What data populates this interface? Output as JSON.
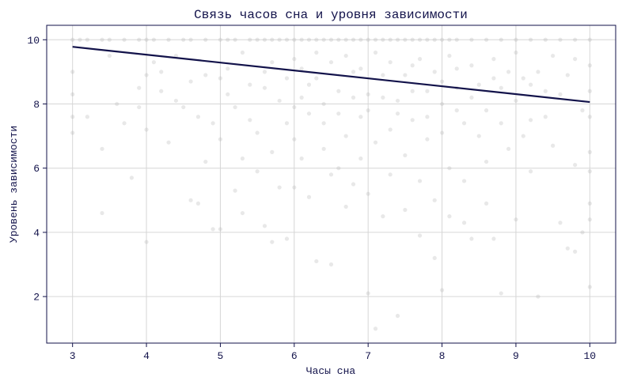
{
  "chart_data": {
    "type": "scatter",
    "title": "Связь часов сна и уровня зависимости",
    "xlabel": "Часы сна",
    "ylabel": "Уровень зависимости",
    "xlim": [
      2.65,
      10.35
    ],
    "ylim": [
      0.55,
      10.45
    ],
    "x_ticks": [
      3,
      4,
      5,
      6,
      7,
      8,
      9,
      10
    ],
    "y_ticks": [
      2,
      4,
      6,
      8,
      10
    ],
    "x_tick_labels": [
      "3",
      "4",
      "5",
      "6",
      "7",
      "8",
      "9",
      "10"
    ],
    "y_tick_labels": [
      "2",
      "4",
      "6",
      "8",
      "10"
    ],
    "grid": true,
    "colors": {
      "points": "#b4b4b4",
      "trend": "#12124a",
      "frame": "#12124a",
      "grid": "#d6d6d6",
      "text": "#12124a"
    },
    "series": [
      {
        "kind": "scatter",
        "points": [
          [
            3.0,
            10.0
          ],
          [
            3.1,
            10.0
          ],
          [
            3.2,
            10.0
          ],
          [
            3.4,
            10.0
          ],
          [
            3.5,
            10.0
          ],
          [
            3.7,
            10.0
          ],
          [
            3.9,
            10.0
          ],
          [
            4.0,
            10.0
          ],
          [
            4.1,
            10.0
          ],
          [
            4.3,
            10.0
          ],
          [
            4.5,
            10.0
          ],
          [
            4.6,
            10.0
          ],
          [
            4.8,
            10.0
          ],
          [
            5.0,
            10.0
          ],
          [
            5.1,
            10.0
          ],
          [
            5.2,
            10.0
          ],
          [
            5.4,
            10.0
          ],
          [
            5.5,
            10.0
          ],
          [
            5.6,
            10.0
          ],
          [
            5.7,
            10.0
          ],
          [
            5.8,
            10.0
          ],
          [
            5.9,
            10.0
          ],
          [
            6.0,
            10.0
          ],
          [
            6.1,
            10.0
          ],
          [
            6.2,
            10.0
          ],
          [
            6.3,
            10.0
          ],
          [
            6.4,
            10.0
          ],
          [
            6.5,
            10.0
          ],
          [
            6.6,
            10.0
          ],
          [
            6.7,
            10.0
          ],
          [
            6.8,
            10.0
          ],
          [
            6.9,
            10.0
          ],
          [
            7.0,
            10.0
          ],
          [
            7.1,
            10.0
          ],
          [
            7.2,
            10.0
          ],
          [
            7.3,
            10.0
          ],
          [
            7.4,
            10.0
          ],
          [
            7.5,
            10.0
          ],
          [
            7.6,
            10.0
          ],
          [
            7.7,
            10.0
          ],
          [
            7.8,
            10.0
          ],
          [
            7.9,
            10.0
          ],
          [
            8.0,
            10.0
          ],
          [
            8.1,
            10.0
          ],
          [
            8.2,
            10.0
          ],
          [
            8.4,
            10.0
          ],
          [
            8.6,
            10.0
          ],
          [
            8.8,
            10.0
          ],
          [
            9.0,
            10.0
          ],
          [
            9.2,
            10.0
          ],
          [
            9.4,
            10.0
          ],
          [
            9.6,
            10.0
          ],
          [
            9.8,
            10.0
          ],
          [
            10.0,
            10.0
          ],
          [
            3.0,
            9.0
          ],
          [
            3.0,
            8.3
          ],
          [
            3.0,
            7.6
          ],
          [
            3.0,
            7.1
          ],
          [
            3.2,
            7.6
          ],
          [
            3.4,
            6.6
          ],
          [
            3.4,
            4.6
          ],
          [
            3.6,
            8.0
          ],
          [
            3.7,
            7.4
          ],
          [
            3.8,
            5.7
          ],
          [
            3.9,
            7.9
          ],
          [
            4.0,
            8.9
          ],
          [
            4.0,
            7.2
          ],
          [
            4.0,
            3.7
          ],
          [
            4.1,
            9.3
          ],
          [
            4.2,
            8.4
          ],
          [
            4.3,
            6.8
          ],
          [
            4.4,
            9.5
          ],
          [
            4.5,
            7.9
          ],
          [
            4.6,
            8.7
          ],
          [
            4.6,
            5.0
          ],
          [
            4.7,
            7.6
          ],
          [
            4.7,
            4.9
          ],
          [
            4.8,
            6.2
          ],
          [
            4.9,
            4.1
          ],
          [
            5.0,
            8.8
          ],
          [
            5.0,
            6.9
          ],
          [
            5.0,
            4.1
          ],
          [
            5.1,
            9.1
          ],
          [
            5.2,
            7.9
          ],
          [
            5.2,
            5.3
          ],
          [
            5.3,
            6.3
          ],
          [
            5.3,
            4.6
          ],
          [
            5.4,
            8.6
          ],
          [
            5.5,
            7.1
          ],
          [
            5.5,
            5.9
          ],
          [
            5.6,
            4.2
          ],
          [
            5.6,
            9.0
          ],
          [
            5.7,
            6.5
          ],
          [
            5.7,
            3.7
          ],
          [
            5.8,
            8.1
          ],
          [
            5.8,
            5.4
          ],
          [
            5.9,
            7.4
          ],
          [
            5.9,
            3.8
          ],
          [
            6.0,
            9.4
          ],
          [
            6.0,
            6.9
          ],
          [
            6.0,
            5.4
          ],
          [
            6.1,
            8.2
          ],
          [
            6.1,
            6.3
          ],
          [
            6.2,
            7.7
          ],
          [
            6.2,
            5.1
          ],
          [
            6.3,
            8.8
          ],
          [
            6.3,
            3.1
          ],
          [
            6.4,
            6.6
          ],
          [
            6.4,
            7.4
          ],
          [
            6.5,
            5.8
          ],
          [
            6.5,
            3.0
          ],
          [
            6.6,
            8.4
          ],
          [
            6.6,
            6.0
          ],
          [
            6.7,
            7.0
          ],
          [
            6.7,
            4.8
          ],
          [
            6.8,
            9.0
          ],
          [
            6.8,
            5.5
          ],
          [
            6.9,
            7.6
          ],
          [
            6.9,
            6.3
          ],
          [
            7.0,
            8.3
          ],
          [
            7.0,
            5.2
          ],
          [
            7.0,
            2.1
          ],
          [
            7.1,
            6.8
          ],
          [
            7.1,
            1.0
          ],
          [
            7.2,
            8.9
          ],
          [
            7.2,
            4.5
          ],
          [
            7.3,
            7.2
          ],
          [
            7.3,
            5.8
          ],
          [
            7.4,
            8.1
          ],
          [
            7.4,
            1.4
          ],
          [
            7.5,
            6.4
          ],
          [
            7.5,
            4.7
          ],
          [
            7.6,
            9.2
          ],
          [
            7.6,
            7.5
          ],
          [
            7.7,
            5.6
          ],
          [
            7.7,
            3.9
          ],
          [
            7.8,
            8.4
          ],
          [
            7.8,
            6.9
          ],
          [
            7.9,
            5.0
          ],
          [
            7.9,
            3.2
          ],
          [
            8.0,
            8.7
          ],
          [
            8.0,
            7.1
          ],
          [
            8.0,
            2.2
          ],
          [
            8.1,
            6.0
          ],
          [
            8.1,
            4.5
          ],
          [
            8.2,
            9.1
          ],
          [
            8.2,
            7.8
          ],
          [
            8.3,
            5.6
          ],
          [
            8.3,
            4.3
          ],
          [
            8.4,
            8.2
          ],
          [
            8.4,
            3.8
          ],
          [
            8.5,
            7.0
          ],
          [
            8.6,
            6.2
          ],
          [
            8.6,
            4.9
          ],
          [
            8.7,
            8.8
          ],
          [
            8.7,
            3.8
          ],
          [
            8.8,
            7.4
          ],
          [
            8.8,
            2.1
          ],
          [
            8.9,
            6.6
          ],
          [
            9.0,
            8.1
          ],
          [
            9.0,
            4.4
          ],
          [
            9.1,
            7.0
          ],
          [
            9.2,
            5.9
          ],
          [
            9.2,
            8.6
          ],
          [
            9.3,
            2.0
          ],
          [
            9.4,
            7.6
          ],
          [
            9.5,
            6.7
          ],
          [
            9.6,
            8.3
          ],
          [
            9.6,
            4.3
          ],
          [
            9.7,
            3.5
          ],
          [
            9.8,
            6.1
          ],
          [
            9.8,
            3.4
          ],
          [
            9.9,
            7.8
          ],
          [
            9.9,
            4.0
          ],
          [
            10.0,
            9.2
          ],
          [
            10.0,
            8.4
          ],
          [
            10.0,
            7.6
          ],
          [
            10.0,
            6.5
          ],
          [
            10.0,
            5.9
          ],
          [
            10.0,
            4.9
          ],
          [
            10.0,
            4.4
          ],
          [
            10.0,
            2.3
          ],
          [
            3.5,
            9.5
          ],
          [
            3.9,
            8.5
          ],
          [
            4.2,
            9.0
          ],
          [
            4.4,
            8.1
          ],
          [
            4.8,
            8.9
          ],
          [
            4.9,
            7.4
          ],
          [
            5.1,
            8.3
          ],
          [
            5.3,
            9.6
          ],
          [
            5.4,
            7.5
          ],
          [
            5.6,
            8.5
          ],
          [
            5.7,
            9.3
          ],
          [
            5.9,
            8.8
          ],
          [
            6.0,
            7.9
          ],
          [
            6.1,
            9.1
          ],
          [
            6.2,
            8.6
          ],
          [
            6.3,
            9.6
          ],
          [
            6.4,
            8.0
          ],
          [
            6.5,
            9.3
          ],
          [
            6.6,
            7.7
          ],
          [
            6.7,
            9.5
          ],
          [
            6.8,
            8.2
          ],
          [
            6.9,
            9.1
          ],
          [
            7.0,
            7.8
          ],
          [
            7.1,
            9.6
          ],
          [
            7.2,
            8.2
          ],
          [
            7.3,
            9.3
          ],
          [
            7.4,
            7.7
          ],
          [
            7.5,
            8.9
          ],
          [
            7.6,
            8.4
          ],
          [
            7.7,
            9.4
          ],
          [
            7.8,
            7.6
          ],
          [
            7.9,
            9.0
          ],
          [
            8.0,
            8.0
          ],
          [
            8.1,
            9.5
          ],
          [
            8.2,
            8.5
          ],
          [
            8.3,
            7.4
          ],
          [
            8.4,
            9.2
          ],
          [
            8.5,
            8.6
          ],
          [
            8.6,
            7.8
          ],
          [
            8.7,
            9.4
          ],
          [
            8.8,
            8.5
          ],
          [
            8.9,
            9.0
          ],
          [
            9.0,
            9.6
          ],
          [
            9.1,
            8.8
          ],
          [
            9.2,
            7.5
          ],
          [
            9.3,
            9.0
          ],
          [
            9.4,
            8.4
          ],
          [
            9.5,
            9.5
          ],
          [
            9.7,
            8.9
          ],
          [
            9.8,
            9.4
          ]
        ]
      },
      {
        "kind": "line",
        "points": [
          [
            3,
            9.78
          ],
          [
            10,
            8.06
          ]
        ]
      }
    ]
  }
}
